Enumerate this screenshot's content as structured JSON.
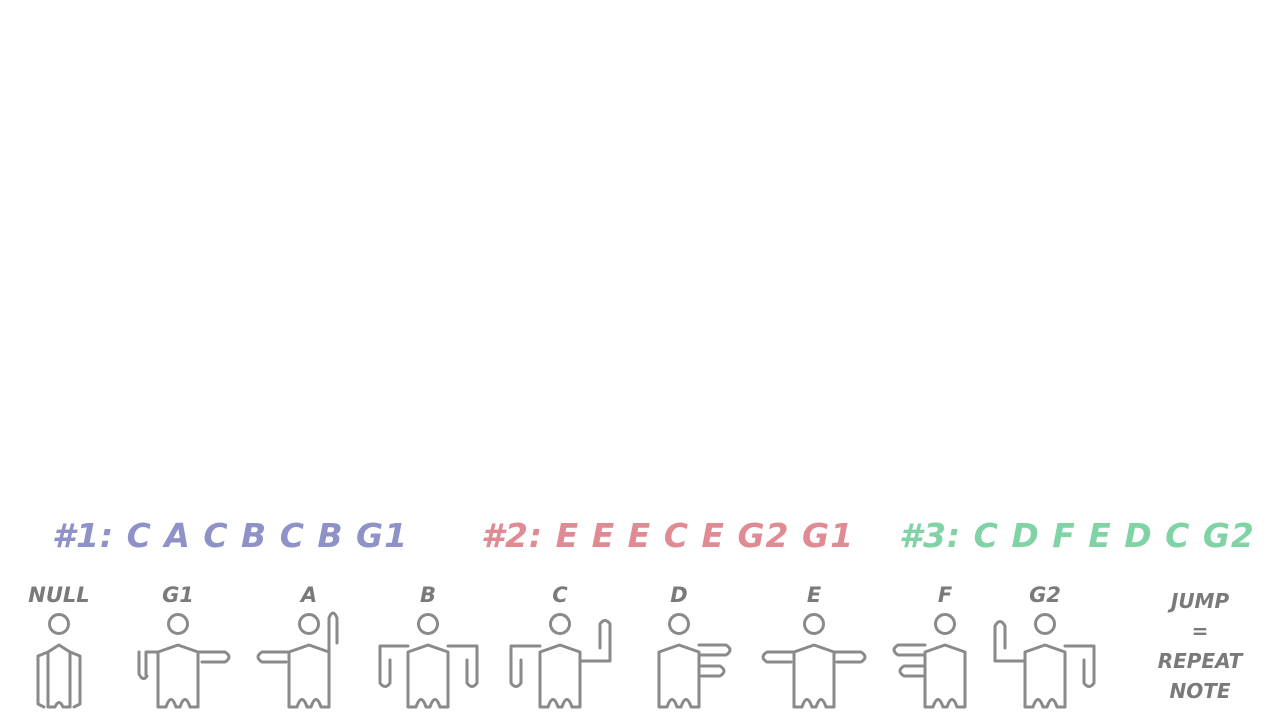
{
  "colors": {
    "figure_stroke": "#8a8a8a",
    "label": "#7a7a7a",
    "sequence_1": "#8f92c8",
    "sequence_2": "#e08a94",
    "sequence_3": "#7fd3a5"
  },
  "sequences": [
    {
      "text": "#1: C A C B C B G1"
    },
    {
      "text": "#2: E E E C E G2 G1"
    },
    {
      "text": "#3: C D F E D C G2"
    }
  ],
  "poses": [
    {
      "label": "NULL",
      "icon": "null-pose-icon"
    },
    {
      "label": "G1",
      "icon": "g1-pose-icon"
    },
    {
      "label": "A",
      "icon": "a-pose-icon"
    },
    {
      "label": "B",
      "icon": "b-pose-icon"
    },
    {
      "label": "C",
      "icon": "c-pose-icon"
    },
    {
      "label": "D",
      "icon": "d-pose-icon"
    },
    {
      "label": "E",
      "icon": "e-pose-icon"
    },
    {
      "label": "F",
      "icon": "f-pose-icon"
    },
    {
      "label": "G2",
      "icon": "g2-pose-icon"
    }
  ],
  "jump_note": {
    "line1": "JUMP",
    "line2": "=",
    "line3": "REPEAT",
    "line4": "NOTE"
  }
}
